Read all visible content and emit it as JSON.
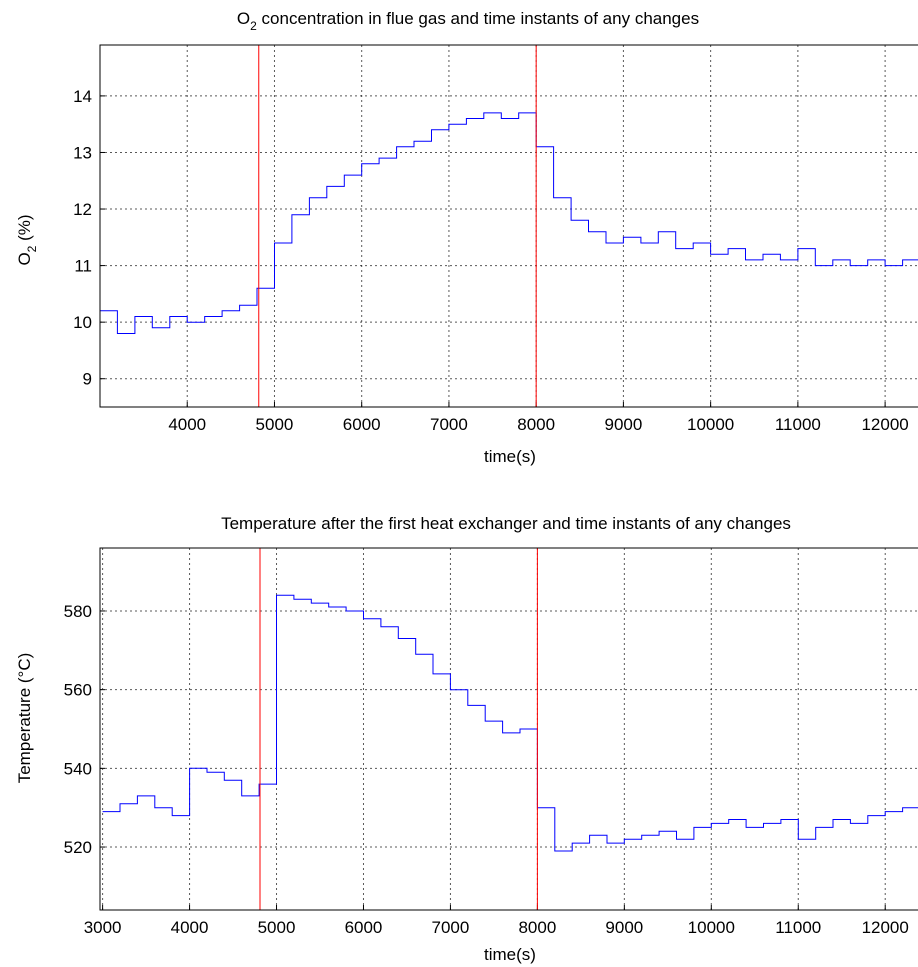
{
  "chart_data": [
    {
      "type": "line",
      "title": {
        "main": "O",
        "sub": "2",
        "rest": " concentration in flue gas and time instants of any changes"
      },
      "xlabel": "time(s)",
      "ylabel": {
        "main": "O",
        "sub": "2",
        "rest": " (%)"
      },
      "xlim": [
        3000,
        12400
      ],
      "ylim": [
        8.5,
        14.9
      ],
      "xticks": [
        4000,
        5000,
        6000,
        7000,
        8000,
        9000,
        10000,
        11000,
        12000
      ],
      "yticks": [
        9,
        10,
        11,
        12,
        13,
        14
      ],
      "grid": true,
      "colors": {
        "series": "#0000ff",
        "marker": "#ff0000"
      },
      "change_instants": [
        4820,
        8000
      ],
      "series": [
        {
          "x": [
            3000,
            3200,
            3400,
            3600,
            3800,
            4000,
            4200,
            4400,
            4600,
            4800,
            5000,
            5200,
            5400,
            5600,
            5800,
            6000,
            6200,
            6400,
            6600,
            6800,
            7000,
            7200,
            7400,
            7600,
            7800,
            8000,
            8200,
            8400,
            8600,
            8800,
            9000,
            9200,
            9400,
            9600,
            9800,
            10000,
            10200,
            10400,
            10600,
            10800,
            11000,
            11200,
            11400,
            11600,
            11800,
            12000,
            12200,
            12400
          ],
          "values": [
            10.2,
            9.8,
            10.1,
            9.9,
            10.1,
            10.0,
            10.1,
            10.2,
            10.3,
            10.6,
            11.4,
            11.9,
            12.2,
            12.4,
            12.6,
            12.8,
            12.9,
            13.1,
            13.2,
            13.4,
            13.5,
            13.6,
            13.7,
            13.6,
            13.7,
            13.1,
            12.2,
            11.8,
            11.6,
            11.4,
            11.5,
            11.4,
            11.6,
            11.3,
            11.4,
            11.2,
            11.3,
            11.1,
            11.2,
            11.1,
            11.3,
            11.0,
            11.1,
            11.0,
            11.1,
            11.0,
            11.1,
            11.0
          ]
        }
      ]
    },
    {
      "type": "line",
      "title": {
        "main": "Temperature after the first heat exchanger and time instants of any changes",
        "sub": "",
        "rest": ""
      },
      "xlabel": "time(s)",
      "ylabel": {
        "main": "Temperature (°C)",
        "sub": "",
        "rest": ""
      },
      "xlim": [
        2970,
        12400
      ],
      "ylim": [
        504,
        596
      ],
      "xticks": [
        3000,
        4000,
        5000,
        6000,
        7000,
        8000,
        9000,
        10000,
        11000,
        12000
      ],
      "yticks": [
        520,
        540,
        560,
        580
      ],
      "grid": true,
      "colors": {
        "series": "#0000ff",
        "marker": "#ff0000"
      },
      "change_instants": [
        4810,
        8000
      ],
      "series": [
        {
          "x": [
            3000,
            3200,
            3400,
            3600,
            3800,
            4000,
            4200,
            4400,
            4600,
            4800,
            5000,
            5200,
            5400,
            5600,
            5800,
            6000,
            6200,
            6400,
            6600,
            6800,
            7000,
            7200,
            7400,
            7600,
            7800,
            8000,
            8200,
            8400,
            8600,
            8800,
            9000,
            9200,
            9400,
            9600,
            9800,
            10000,
            10200,
            10400,
            10600,
            10800,
            11000,
            11200,
            11400,
            11600,
            11800,
            12000,
            12200,
            12400
          ],
          "values": [
            529,
            531,
            533,
            530,
            528,
            540,
            539,
            537,
            533,
            536,
            584,
            583,
            582,
            581,
            580,
            578,
            576,
            573,
            569,
            564,
            560,
            556,
            552,
            549,
            550,
            530,
            519,
            521,
            523,
            521,
            522,
            523,
            524,
            522,
            525,
            526,
            527,
            525,
            526,
            527,
            522,
            525,
            527,
            526,
            528,
            529,
            530,
            531
          ]
        }
      ]
    }
  ]
}
